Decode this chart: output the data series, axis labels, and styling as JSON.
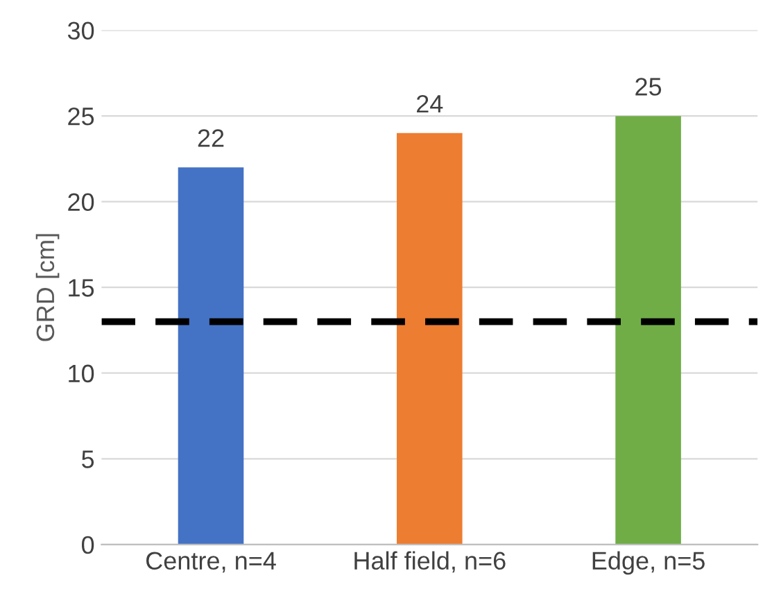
{
  "chart_data": {
    "type": "bar",
    "ylabel": "GRD [cm]",
    "categories": [
      "Centre, n=4",
      "Half field, n=6",
      "Edge, n=5"
    ],
    "values": [
      22,
      24,
      25
    ],
    "colors": [
      "#4472c4",
      "#ed7d31",
      "#70ad47"
    ],
    "ylim": [
      0,
      30
    ],
    "yticks": [
      0,
      5,
      10,
      15,
      20,
      25,
      30
    ],
    "grid": "y",
    "data_labels": true,
    "ref_lines": [
      {
        "axis": "y",
        "value": 13,
        "color": "#000000",
        "line_style": "dashed"
      }
    ]
  }
}
